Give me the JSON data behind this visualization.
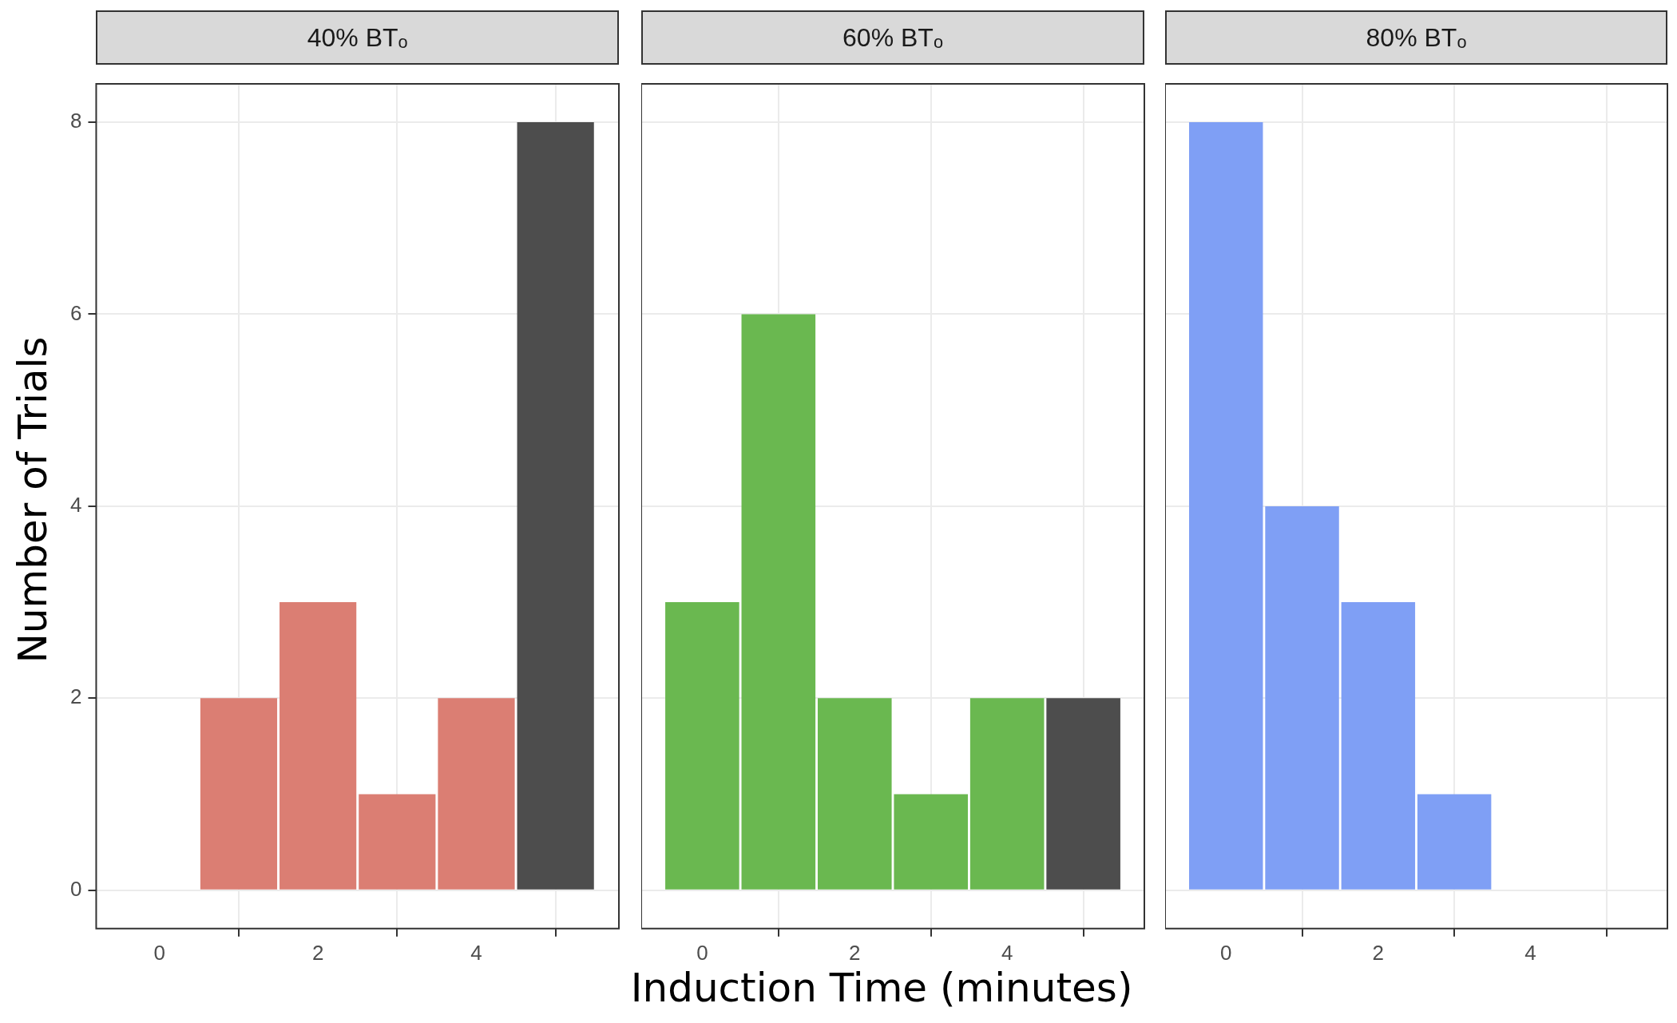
{
  "chart_data": [
    {
      "type": "histogram",
      "title": "40% BTₒ",
      "ylabel": "Number of Trials",
      "bins": [
        0.5,
        1.5,
        2.5,
        3.5,
        4.5,
        5.5
      ],
      "values": [
        2,
        3,
        1,
        2,
        8
      ],
      "colors": [
        "#db7e73",
        "#db7e73",
        "#db7e73",
        "#db7e73",
        "#4d4d4d"
      ],
      "xlim": [
        -0.8,
        5.8
      ],
      "xticks": [
        0,
        2,
        4
      ],
      "ylim": [
        -0.4,
        8.4
      ],
      "yticks": [
        0,
        2,
        4,
        6,
        8
      ],
      "grid": true,
      "legend": false
    },
    {
      "type": "histogram",
      "title": "60% BTₒ",
      "xlabel": "Induction Time (minutes)",
      "bins": [
        -0.5,
        0.5,
        1.5,
        2.5,
        3.5,
        4.5,
        5.5
      ],
      "values": [
        3,
        6,
        2,
        1,
        2,
        2
      ],
      "colors": [
        "#6ab850",
        "#6ab850",
        "#6ab850",
        "#6ab850",
        "#6ab850",
        "#4d4d4d"
      ],
      "xlim": [
        -0.8,
        5.8
      ],
      "xticks": [
        0,
        2,
        4
      ],
      "ylim": [
        -0.4,
        8.4
      ],
      "yticks": [
        0,
        2,
        4,
        6,
        8
      ],
      "grid": true,
      "legend": false,
      "tick_labels": "x"
    },
    {
      "type": "histogram",
      "title": "80% BTₒ",
      "bins": [
        -0.5,
        0.5,
        1.5,
        2.5,
        3.5
      ],
      "values": [
        8,
        4,
        3,
        1
      ],
      "colors": [
        "#7f9ff5",
        "#7f9ff5",
        "#7f9ff5",
        "#7f9ff5"
      ],
      "xlim": [
        -0.8,
        5.8
      ],
      "xticks": [
        0,
        2,
        4
      ],
      "ylim": [
        -0.4,
        8.4
      ],
      "yticks": [
        0,
        2,
        4,
        6,
        8
      ],
      "grid": true,
      "legend": false,
      "tick_labels": "x"
    }
  ]
}
